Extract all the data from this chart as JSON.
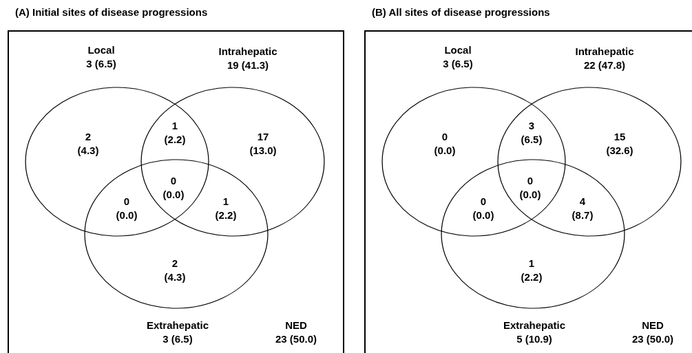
{
  "chart_data": [
    {
      "type": "other",
      "title": "(A) Initial sites of disease progressions",
      "categories": [
        "Local",
        "Intrahepatic",
        "Extrahepatic",
        "NED"
      ],
      "values": [
        3,
        19,
        3,
        23
      ],
      "value_labels": [
        "3 (6.5)",
        "19 (41.3)",
        "3 (6.5)",
        "23 (50.0)"
      ],
      "annotations": [
        "2 (4.3)",
        "1 (2.2)",
        "17 (13.0)",
        "0 (0.0)",
        "0 (0.0)",
        "1 (2.2)",
        "2 (4.3)"
      ]
    },
    {
      "type": "other",
      "title": "(B) All sites of disease progressions",
      "categories": [
        "Local",
        "Intrahepatic",
        "Extrahepatic",
        "NED"
      ],
      "values": [
        3,
        22,
        5,
        23
      ],
      "value_labels": [
        "3 (6.5)",
        "22 (47.8)",
        "5 (10.9)",
        "23 (50.0)"
      ],
      "annotations": [
        "0 (0.0)",
        "3 (6.5)",
        "15 (32.6)",
        "0 (0.0)",
        "0 (0.0)",
        "4 (8.7)",
        "1 (2.2)"
      ]
    }
  ]
}
